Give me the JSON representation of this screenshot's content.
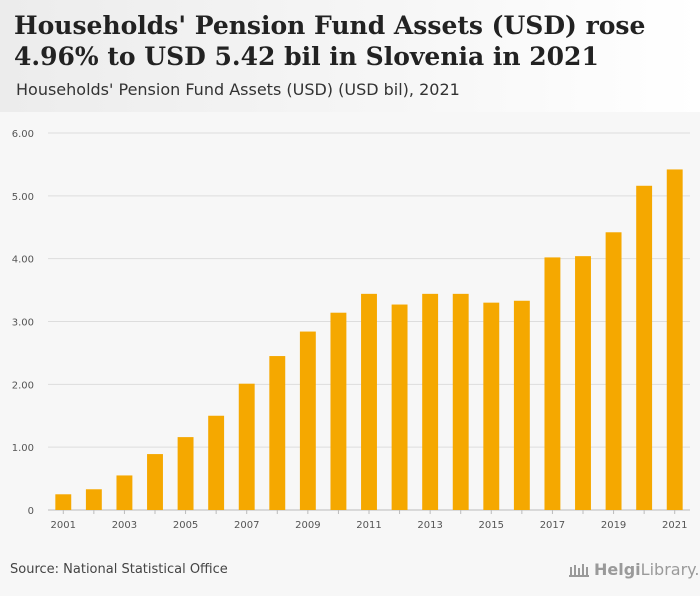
{
  "header": {
    "title": "Households' Pension Fund Assets (USD) rose 4.96% to USD 5.42 bil in Slovenia in 2021",
    "subtitle": "Households' Pension Fund Assets (USD) (USD bil), 2021"
  },
  "footer": {
    "source": "Source: National Statistical Office",
    "brand_main": "Helgi",
    "brand_rest": "Library."
  },
  "colors": {
    "bar": "#f5a800",
    "grid": "#dddddd",
    "axis_text": "#555555"
  },
  "chart_data": {
    "type": "bar",
    "title": "Households' Pension Fund Assets (USD) rose 4.96% to USD 5.42 bil in Slovenia in 2021",
    "subtitle": "Households' Pension Fund Assets (USD) (USD bil), 2021",
    "xlabel": "",
    "ylabel": "USD bil",
    "ylim": [
      0,
      6
    ],
    "yticks": [
      0,
      1,
      2,
      3,
      4,
      5,
      6
    ],
    "ytick_labels": [
      "0",
      "1.00",
      "2.00",
      "3.00",
      "4.00",
      "5.00",
      "6.00"
    ],
    "grid": true,
    "categories": [
      "2001",
      "2002",
      "2003",
      "2004",
      "2005",
      "2006",
      "2007",
      "2008",
      "2009",
      "2010",
      "2011",
      "2012",
      "2013",
      "2014",
      "2015",
      "2016",
      "2017",
      "2018",
      "2019",
      "2020",
      "2021"
    ],
    "xtick_labels": [
      "2001",
      "",
      "2003",
      "",
      "2005",
      "",
      "2007",
      "",
      "2009",
      "",
      "2011",
      "",
      "2013",
      "",
      "2015",
      "",
      "2017",
      "",
      "2019",
      "",
      "2021"
    ],
    "values": [
      0.25,
      0.33,
      0.55,
      0.89,
      1.16,
      1.5,
      2.01,
      2.45,
      2.84,
      3.14,
      3.44,
      3.27,
      3.44,
      3.44,
      3.3,
      3.33,
      4.02,
      4.04,
      4.42,
      5.16,
      5.42
    ]
  }
}
